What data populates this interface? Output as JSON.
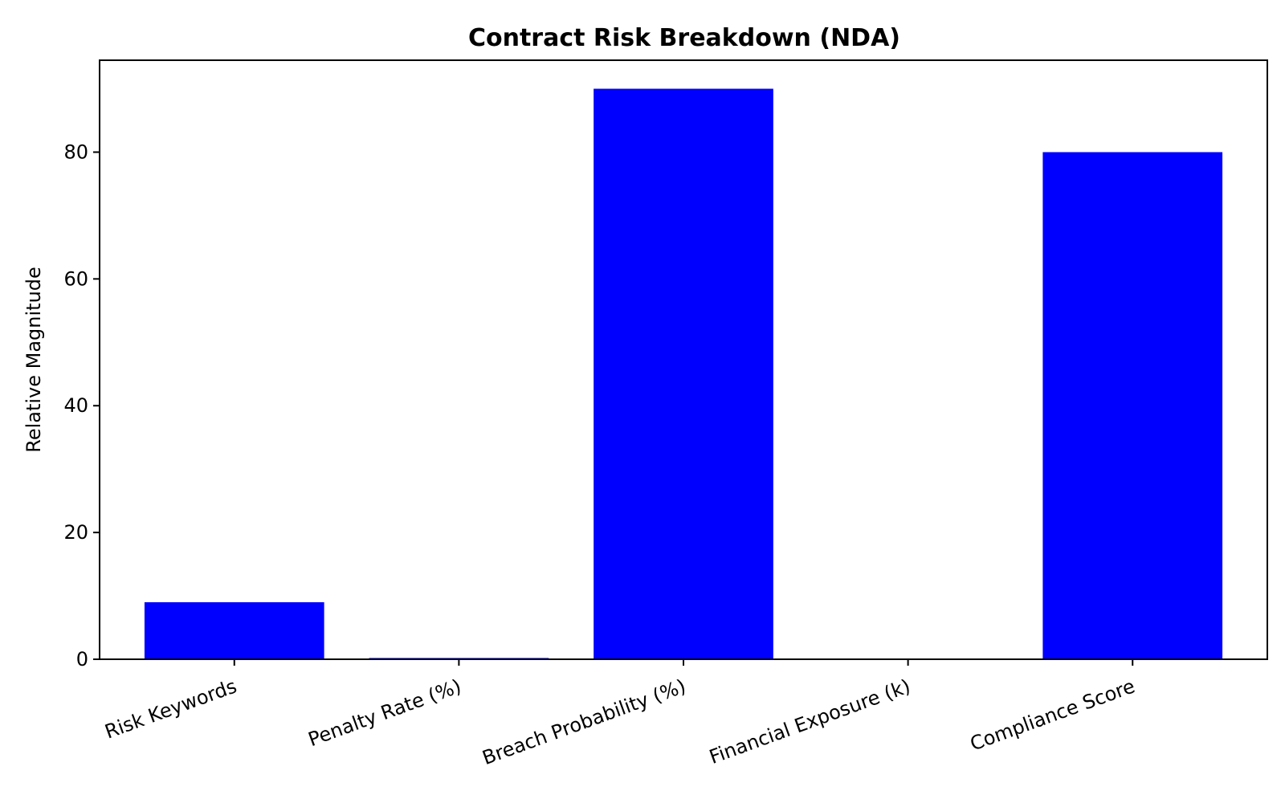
{
  "chart_data": {
    "type": "bar",
    "title": "Contract Risk Breakdown (NDA)",
    "xlabel": "",
    "ylabel": "Relative Magnitude",
    "categories": [
      "Risk Keywords",
      "Penalty Rate (%)",
      "Breach Probability (%)",
      "Financial Exposure (k)",
      "Compliance Score"
    ],
    "values": [
      9,
      0.2,
      90,
      0,
      80
    ],
    "ylim": [
      0,
      94.5
    ],
    "yticks": [
      0,
      20,
      40,
      60,
      80
    ],
    "bar_color": "#0000ff",
    "grid": false,
    "legend": false
  }
}
